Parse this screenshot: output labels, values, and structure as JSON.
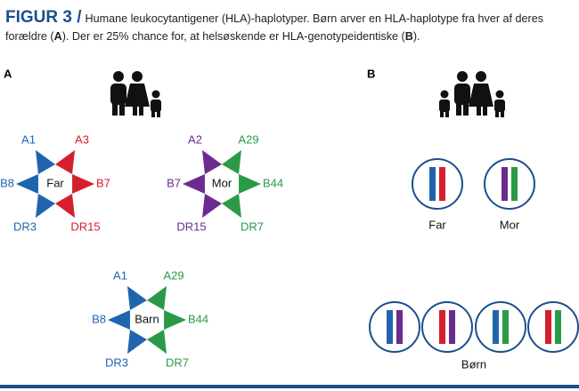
{
  "header": {
    "label": "FIGUR 3 /",
    "caption": [
      "Humane leukocytantigener (HLA)-haplotyper. Børn arver en HLA-haplotype fra hver af deres forældre (",
      "A",
      "). Der er 25% chance for, at helsøskende er HLA-genotypeidentiske (",
      "B",
      ")."
    ]
  },
  "panels": [
    {
      "label": "A",
      "hexagrams": [
        {
          "center": "Far",
          "alleles": [
            "A1",
            "A3",
            "B8",
            "B7",
            "DR3",
            "DR15"
          ]
        },
        {
          "center": "Mor",
          "alleles": [
            "A2",
            "A29",
            "B7",
            "B44",
            "DR15",
            "DR7"
          ]
        },
        {
          "center": "Barn",
          "alleles": [
            "A1",
            "A29",
            "B8",
            "B44",
            "DR3",
            "DR7"
          ]
        }
      ]
    },
    {
      "label": "B",
      "parents": [
        "Far",
        "Mor"
      ],
      "children": "Børn"
    }
  ]
}
